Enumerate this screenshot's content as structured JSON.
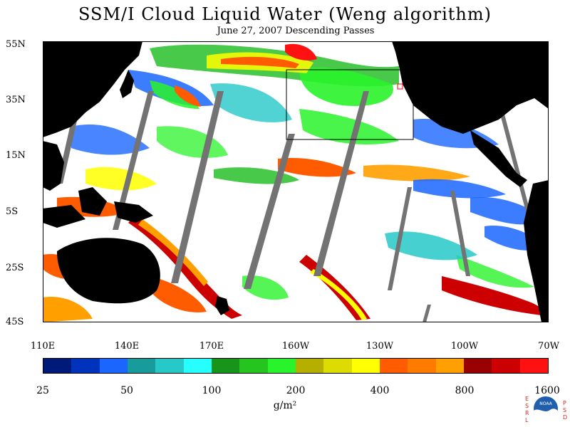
{
  "title": "SSM/I Cloud Liquid Water (Weng algorithm)",
  "subtitle": "June 27, 2007  Descending Passes",
  "lat_labels": [
    "55N",
    "35N",
    "15N",
    "5S",
    "25S",
    "45S"
  ],
  "lon_labels": [
    "110E",
    "140E",
    "170E",
    "160W",
    "130W",
    "100W",
    "70W"
  ],
  "colorbar": {
    "colors": [
      "#001a7a",
      "#0033bb",
      "#1a66ff",
      "#179b9b",
      "#27c8c8",
      "#27ffff",
      "#17951a",
      "#26c41f",
      "#29f32a",
      "#b5b000",
      "#dcdc00",
      "#ffff00",
      "#ff5b00",
      "#ff7b00",
      "#ffa000",
      "#990000",
      "#cc0000",
      "#ff1111"
    ],
    "labels": [
      "25",
      "50",
      "100",
      "200",
      "400",
      "800",
      "1600"
    ]
  },
  "unit": "g/m²",
  "logo": {
    "letters_left": [
      "E",
      "S",
      "R",
      "L"
    ],
    "letters_right": [
      "P",
      "S",
      "D"
    ],
    "center": "NOAA"
  },
  "colors": {
    "land": "#000000",
    "no_data_swath": "#737373",
    "background": "#ffffff"
  }
}
